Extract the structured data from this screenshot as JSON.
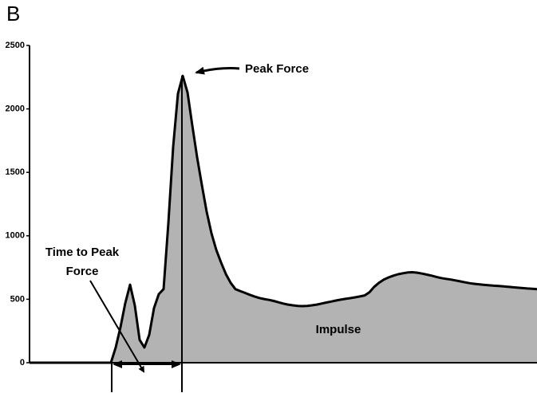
{
  "chart_data": {
    "type": "area",
    "panel_label": "B",
    "annotations": {
      "peak": "Peak Force",
      "time_line1": "Time to Peak",
      "time_line2": "Force",
      "area": "Impulse"
    },
    "values": [
      0,
      0,
      0,
      0,
      0,
      0,
      0,
      0,
      0,
      0,
      0,
      0,
      0,
      0,
      0,
      0,
      0,
      0,
      120,
      280,
      470,
      615,
      450,
      180,
      120,
      220,
      430,
      540,
      580,
      1100,
      1700,
      2120,
      2260,
      2130,
      1870,
      1620,
      1400,
      1190,
      1020,
      890,
      790,
      700,
      630,
      580,
      565,
      550,
      535,
      522,
      510,
      502,
      495,
      487,
      476,
      466,
      458,
      452,
      448,
      446,
      448,
      452,
      458,
      466,
      474,
      482,
      490,
      497,
      503,
      509,
      515,
      522,
      530,
      555,
      598,
      630,
      655,
      672,
      686,
      697,
      705,
      711,
      713,
      709,
      702,
      694,
      686,
      676,
      667,
      661,
      655,
      648,
      641,
      633,
      626,
      621,
      617,
      613,
      610,
      607,
      604,
      601,
      598,
      594,
      591,
      588,
      585,
      583,
      580
    ],
    "color": "#b3b3b3",
    "line_color": "#000000",
    "ylim": [
      0,
      2500
    ],
    "yticks": [
      0,
      500,
      1000,
      1500,
      2000,
      2500
    ],
    "grid": false
  }
}
